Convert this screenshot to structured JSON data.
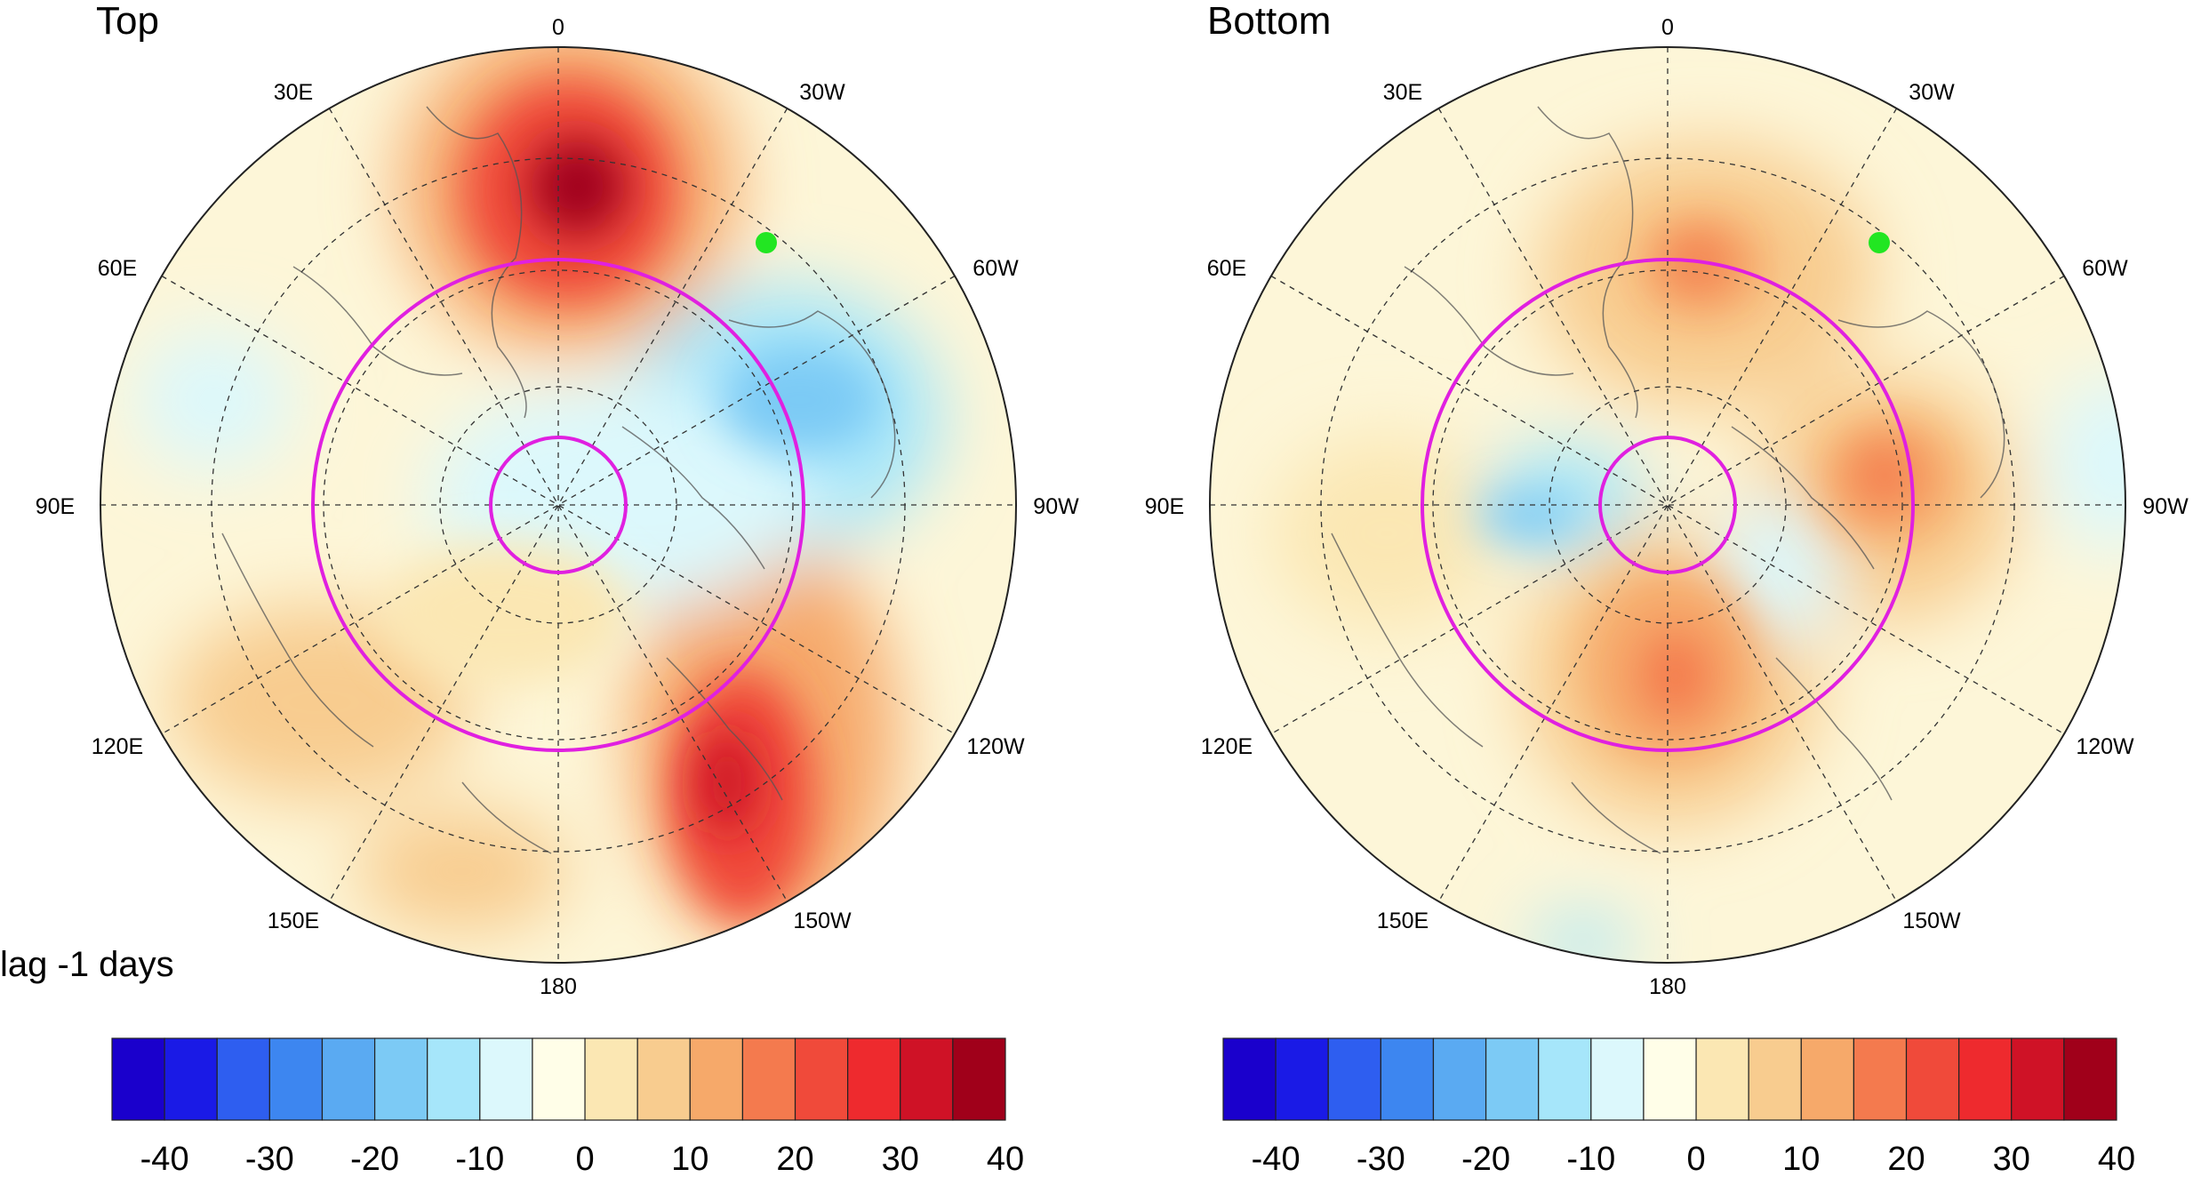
{
  "figure": {
    "lag_label": "lag -1 days",
    "panels": [
      {
        "id": "top",
        "title": "Top",
        "longitude_labels": [
          "0",
          "30W",
          "60W",
          "90W",
          "120W",
          "150W",
          "180",
          "150E",
          "120E",
          "90E",
          "60E",
          "30E"
        ],
        "marker_color": "#22e622",
        "circle_color": "#e020e0"
      },
      {
        "id": "bottom",
        "title": "Bottom",
        "longitude_labels": [
          "0",
          "30W",
          "60W",
          "90W",
          "120W",
          "150W",
          "180",
          "150E",
          "120E",
          "90E",
          "60E",
          "30E"
        ],
        "marker_color": "#22e622",
        "circle_color": "#e020e0"
      }
    ]
  },
  "colorbar": {
    "colors": [
      "#1a00cc",
      "#1a1ae6",
      "#2e5ef0",
      "#3d86f0",
      "#5aaaf2",
      "#7ccaf5",
      "#a6e6fa",
      "#dcf8fc",
      "#fffee8",
      "#fbe7b3",
      "#f8cc8f",
      "#f6a96a",
      "#f47a4e",
      "#f04a3a",
      "#ee2a2e",
      "#cf1226",
      "#a0001a"
    ],
    "tick_labels": [
      "-40",
      "-30",
      "-20",
      "-10",
      "0",
      "10",
      "20",
      "30",
      "40"
    ]
  },
  "chart_data": {
    "type": "heatmap",
    "projection": "north-polar-stereographic",
    "color_scale": {
      "min": -40,
      "max": 40,
      "step": 5,
      "ticks": [
        -40,
        -30,
        -20,
        -10,
        0,
        10,
        20,
        30,
        40
      ]
    },
    "panels": [
      {
        "title": "Top",
        "anomaly_centers": [
          {
            "lon": 10,
            "lat": 60,
            "value": 40
          },
          {
            "lon": -160,
            "lat": 55,
            "value": 32
          },
          {
            "lon": -45,
            "lat": 72,
            "value": -15
          },
          {
            "lon": -85,
            "lat": 62,
            "value": -10
          },
          {
            "lon": 130,
            "lat": 55,
            "value": 12
          },
          {
            "lon": -110,
            "lat": 70,
            "value": -5
          }
        ]
      },
      {
        "title": "Bottom",
        "anomaly_centers": [
          {
            "lon": 5,
            "lat": 72,
            "value": 22
          },
          {
            "lon": -85,
            "lat": 65,
            "value": 22
          },
          {
            "lon": 170,
            "lat": 68,
            "value": 22
          },
          {
            "lon": 75,
            "lat": 78,
            "value": -12
          },
          {
            "lon": -60,
            "lat": 80,
            "value": -5
          },
          {
            "lon": 100,
            "lat": 55,
            "value": 10
          }
        ]
      }
    ]
  }
}
